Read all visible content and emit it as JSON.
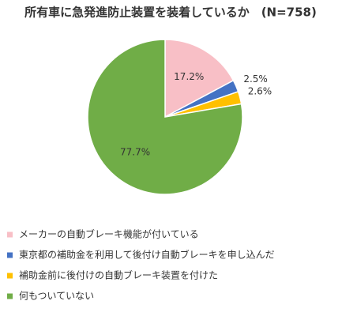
{
  "chart_data": {
    "type": "pie",
    "title": "所有車に急発進防止装置を装着しているか　(N=758)",
    "categories": [
      "メーカーの自動ブレーキ機能が付いている",
      "東京都の補助金を利用して後付け自動ブレーキを申し込んだ",
      "補助金前に後付けの自動ブレーキ装置を付けた",
      "何もついていない"
    ],
    "values": [
      17.2,
      2.5,
      2.6,
      77.7
    ],
    "value_labels": [
      "17.2%",
      "2.5%",
      "2.6%",
      "77.7%"
    ],
    "colors": [
      "#f8bfc6",
      "#4472c4",
      "#ffc000",
      "#70ad47"
    ]
  }
}
